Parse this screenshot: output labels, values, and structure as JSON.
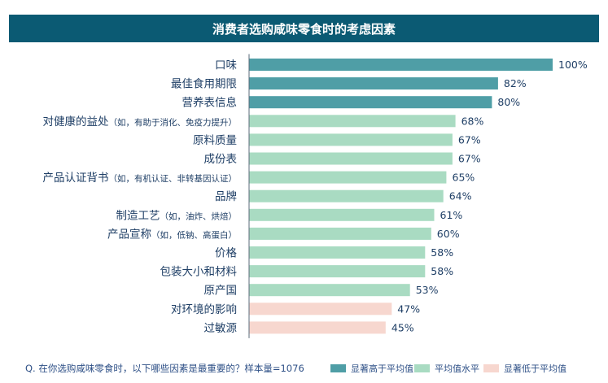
{
  "chart_data": {
    "type": "bar",
    "orientation": "horizontal",
    "title": "消费者选购咸味零食时的考虑因素",
    "categories": [
      {
        "main": "口味",
        "note": ""
      },
      {
        "main": "最佳食用期限",
        "note": ""
      },
      {
        "main": "营养表信息",
        "note": ""
      },
      {
        "main": "对健康的益处",
        "note": "（如，有助于消化、免疫力提升）"
      },
      {
        "main": "原料质量",
        "note": ""
      },
      {
        "main": "成份表",
        "note": ""
      },
      {
        "main": "产品认证背书",
        "note": "（如，有机认证、非转基因认证）"
      },
      {
        "main": "品牌",
        "note": ""
      },
      {
        "main": "制造工艺",
        "note": "（如，油炸、烘焙）"
      },
      {
        "main": "产品宣称",
        "note": "（如，低钠、高蛋白）"
      },
      {
        "main": "价格",
        "note": ""
      },
      {
        "main": "包装大小和材料",
        "note": ""
      },
      {
        "main": "原产国",
        "note": ""
      },
      {
        "main": "对环境的影响",
        "note": ""
      },
      {
        "main": "过敏源",
        "note": ""
      }
    ],
    "values": [
      100,
      82,
      80,
      68,
      67,
      67,
      65,
      64,
      61,
      60,
      58,
      58,
      53,
      47,
      45
    ],
    "value_labels": [
      "100%",
      "82%",
      "80%",
      "68%",
      "67%",
      "67%",
      "65%",
      "64%",
      "61%",
      "60%",
      "58%",
      "58%",
      "53%",
      "47%",
      "45%"
    ],
    "groups": [
      "high",
      "high",
      "high",
      "avg",
      "avg",
      "avg",
      "avg",
      "avg",
      "avg",
      "avg",
      "avg",
      "avg",
      "avg",
      "low",
      "low"
    ],
    "xlim": [
      0,
      100
    ],
    "legend": [
      {
        "key": "high",
        "label": "显著高于平均值"
      },
      {
        "key": "avg",
        "label": "平均值水平"
      },
      {
        "key": "low",
        "label": "显著低于平均值"
      }
    ],
    "colors": {
      "high": "#4f9ea6",
      "avg": "#a9dbc2",
      "low": "#f7d7cf"
    },
    "footnote": "Q. 在你选购咸味零食时，以下哪些因素是最重要的？样本量=1076"
  }
}
